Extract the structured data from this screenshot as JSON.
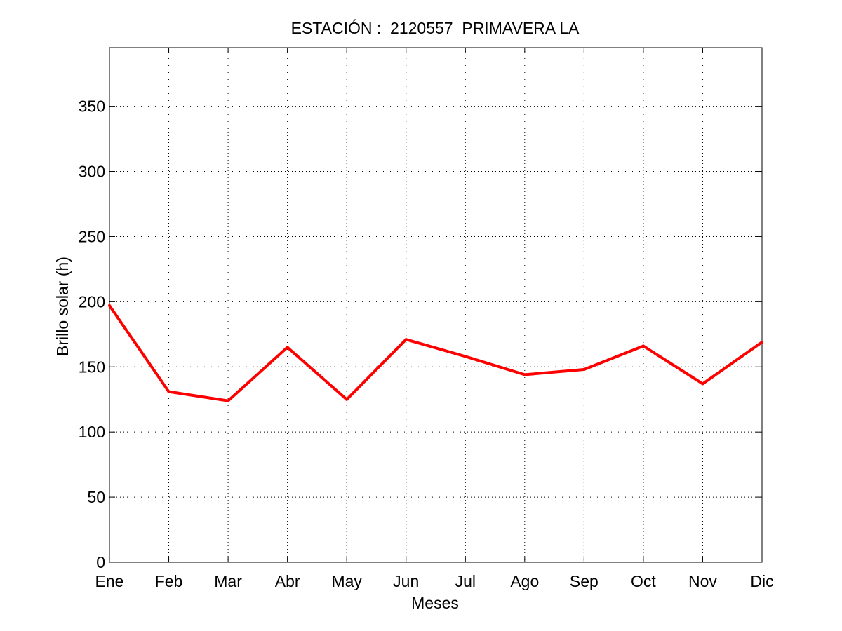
{
  "chart_data": {
    "type": "line",
    "title": "ESTACIÓN :  2120557  PRIMAVERA LA",
    "xlabel": "Meses",
    "ylabel": "Brillo solar (h)",
    "categories": [
      "Ene",
      "Feb",
      "Mar",
      "Abr",
      "May",
      "Jun",
      "Jul",
      "Ago",
      "Sep",
      "Oct",
      "Nov",
      "Dic"
    ],
    "yticks": [
      "0",
      "50",
      "100",
      "150",
      "200",
      "250",
      "300",
      "350"
    ],
    "ylim": [
      0,
      395
    ],
    "grid": true,
    "series": [
      {
        "color": "#ff0000",
        "values": [
          197,
          131,
          124,
          165,
          125,
          171,
          158,
          144,
          148,
          166,
          137,
          169
        ]
      }
    ]
  }
}
